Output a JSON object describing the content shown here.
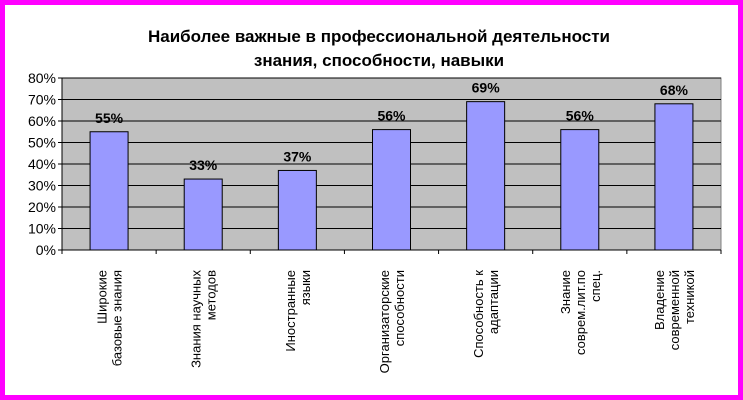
{
  "chart_data": {
    "type": "bar",
    "title_lines": [
      "Наиболее важные в профессиональной деятельности",
      "знания, способности, навыки"
    ],
    "categories": [
      [
        "Широкие",
        "базовые знания"
      ],
      [
        "Знания научных",
        "методов"
      ],
      [
        "Иностранные",
        "языки"
      ],
      [
        "Организаторские",
        "способности"
      ],
      [
        "Способность к",
        "адаптации"
      ],
      [
        "Знание",
        "соврем.лит.по",
        "спец."
      ],
      [
        "Владение",
        "современной",
        "техникой"
      ]
    ],
    "values": [
      55,
      33,
      37,
      56,
      69,
      56,
      68
    ],
    "data_labels": [
      "55%",
      "33%",
      "37%",
      "56%",
      "69%",
      "56%",
      "68%"
    ],
    "ylim": [
      0,
      80
    ],
    "yticks": [
      0,
      10,
      20,
      30,
      40,
      50,
      60,
      70,
      80
    ],
    "ytick_labels": [
      "0%",
      "10%",
      "20%",
      "30%",
      "40%",
      "50%",
      "60%",
      "70%",
      "80%"
    ],
    "grid": true,
    "colors": {
      "frame": "#ff00ff",
      "plot_bg": "#c0c0c0",
      "bar_fill": "#9999ff",
      "grid": "#000000"
    }
  }
}
